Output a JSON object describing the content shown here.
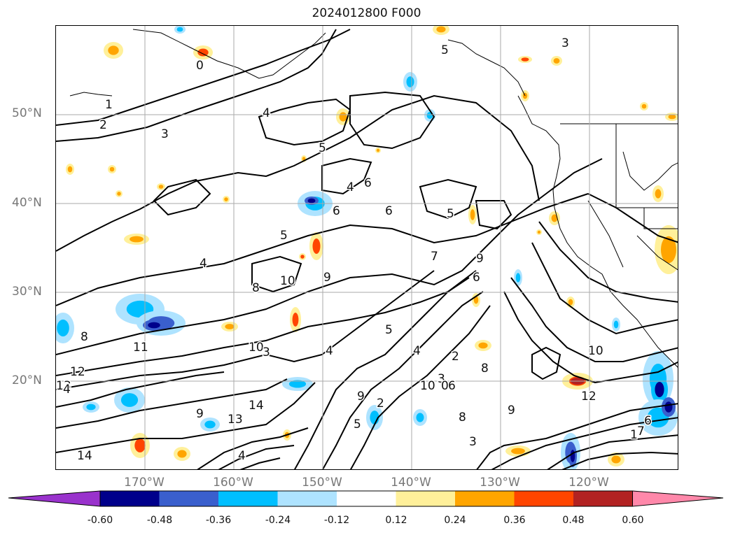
{
  "title": "2024012800 F000",
  "map": {
    "latitude_labels": [
      "50°N",
      "40°N",
      "30°N",
      "20°N"
    ],
    "longitude_labels": [
      "170°W",
      "160°W",
      "150°W",
      "140°W",
      "130°W",
      "120°W"
    ],
    "contour_labels": [
      "1",
      "0",
      "2",
      "3",
      "4",
      "5",
      "6",
      "4",
      "5",
      "6",
      "5",
      "4",
      "3",
      "6",
      "9",
      "8",
      "10",
      "11",
      "12",
      "13",
      "14",
      "9",
      "10",
      "8",
      "5",
      "4",
      "3",
      "2",
      "6",
      "8",
      "9",
      "10",
      "7",
      "6",
      "1",
      "3",
      "4",
      "12",
      "13",
      "14",
      "0",
      "10",
      "2",
      "3",
      "4",
      "9",
      "7",
      "6",
      "5",
      "4",
      "5",
      "8",
      "9"
    ]
  },
  "colorbar": {
    "colors": [
      "#9932cc",
      "#00008b",
      "#3a5fcd",
      "#00bfff",
      "#aee3ff",
      "#ffffff",
      "#fff09a",
      "#ffa500",
      "#ff4500",
      "#b22222",
      "#ff88aa"
    ],
    "tick_labels": [
      "-0.60",
      "-0.48",
      "-0.36",
      "-0.24",
      "-0.12",
      "0.12",
      "0.24",
      "0.36",
      "0.48",
      "0.60"
    ]
  }
}
